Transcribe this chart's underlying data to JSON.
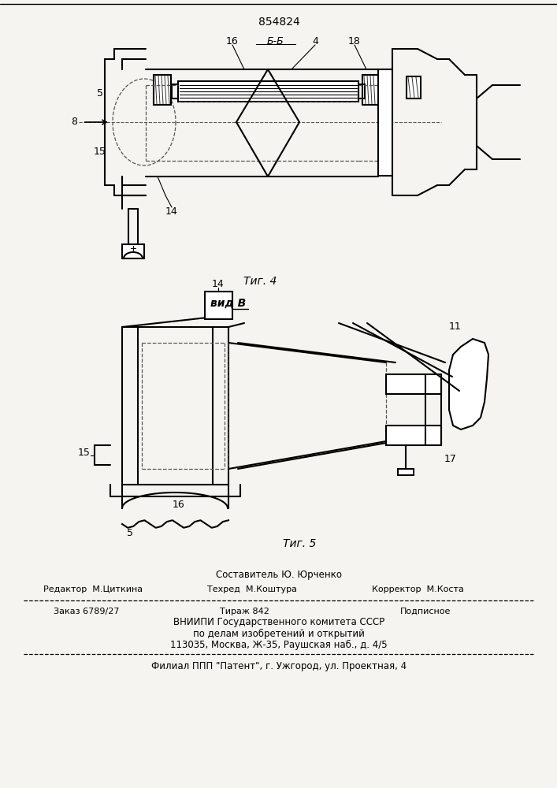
{
  "patent_number": "854824",
  "background_color": "#f5f4f0",
  "fig4_label": "Τиг. 4",
  "fig5_label": "Τиг. 5",
  "view_label": "вид B",
  "section_label": "Б-Б",
  "footer": {
    "line1_center": "Составитель Ю. Юрченко",
    "line2_left": "Редактор  М.Циткина",
    "line2_center": "Техред  М.Коштура",
    "line2_right": "Корректор  М.Коста",
    "line3_left": "Заказ 6789/27",
    "line3_center": "Тираж 842",
    "line3_right": "Подписное",
    "line4": "ВНИИПИ Государственного комитета СССР",
    "line5": "по делам изобретений и открытий",
    "line6": "113035, Москва, Ж-35, Раушская наб., д. 4/5",
    "line7": "Филиал ППП \"Патент\", г. Ужгород, ул. Проектная, 4"
  }
}
